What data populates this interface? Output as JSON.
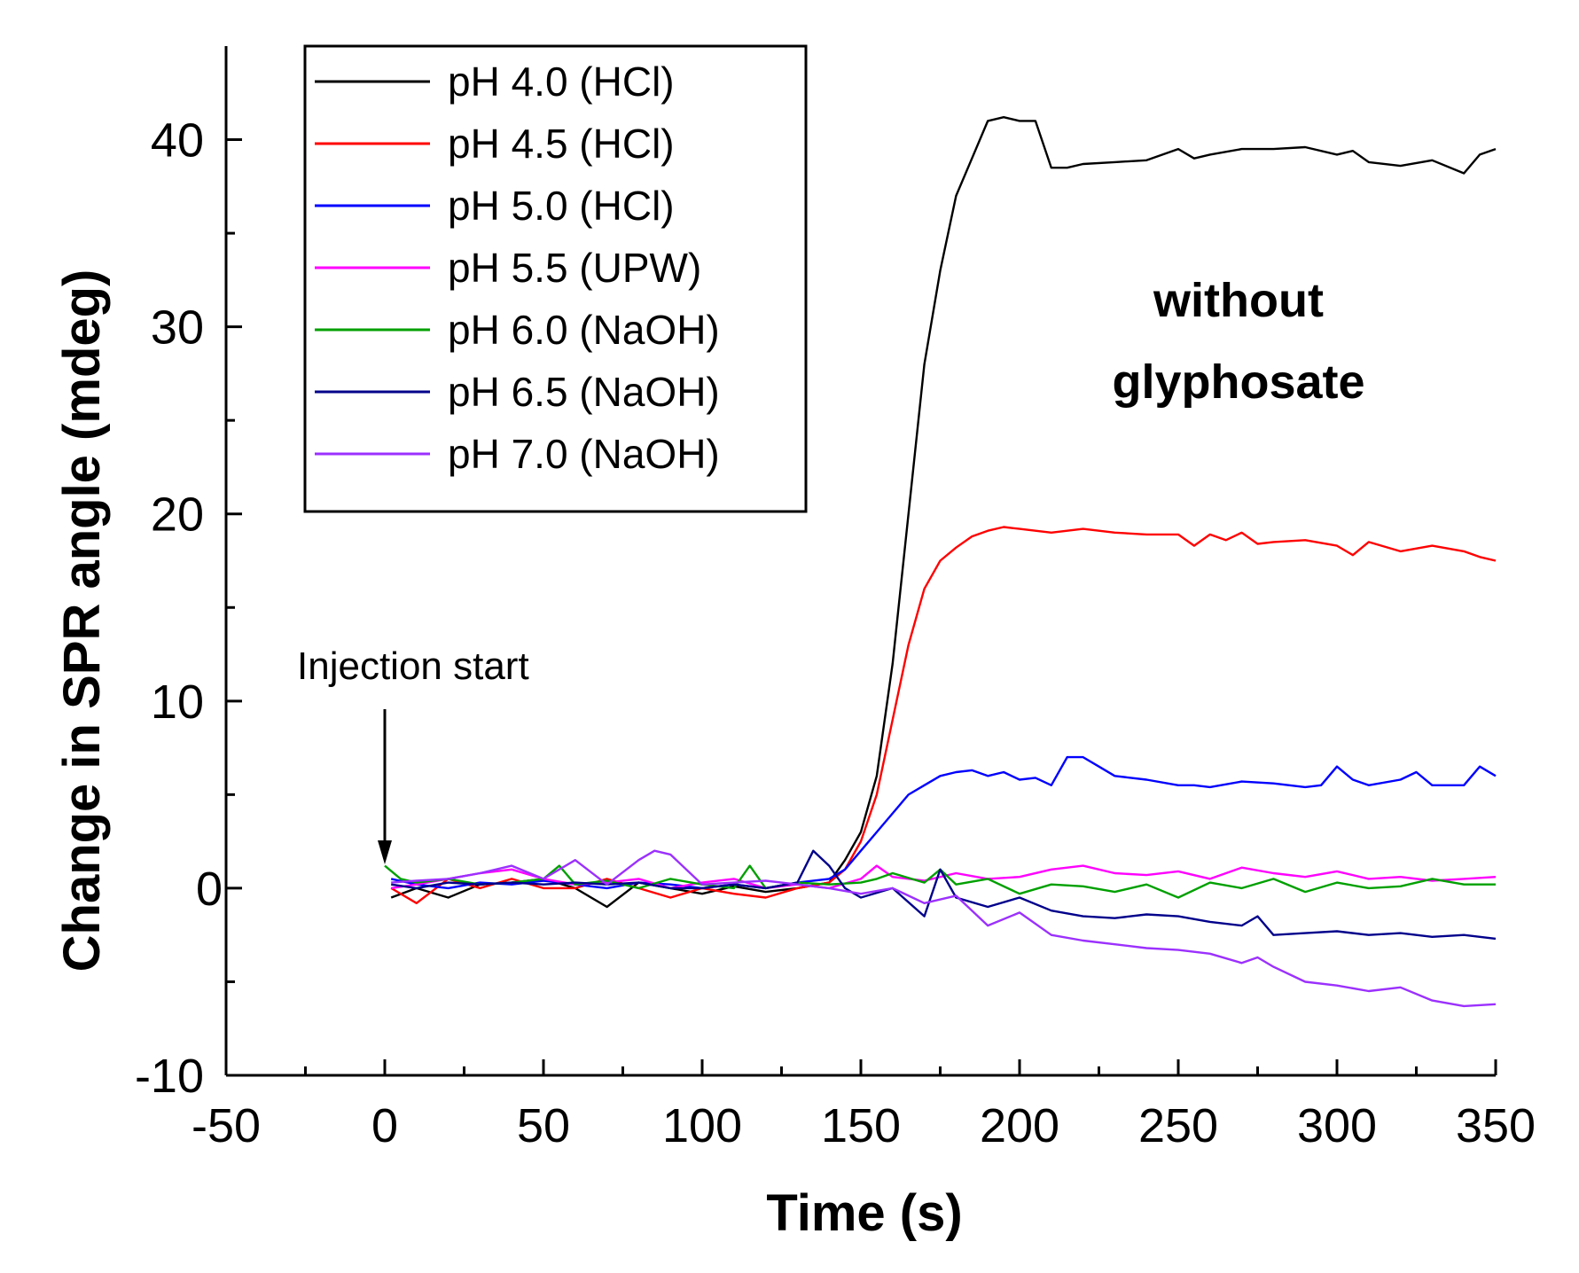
{
  "chart_data": {
    "type": "line",
    "title": "",
    "xlabel": "Time (s)",
    "ylabel": "Change in SPR angle (mdeg)",
    "xlim": [
      -50,
      350
    ],
    "ylim": [
      -10,
      45
    ],
    "xticks": [
      -50,
      0,
      50,
      100,
      150,
      200,
      250,
      300,
      350
    ],
    "yticks": [
      -10,
      0,
      10,
      20,
      30,
      40
    ],
    "yticks_labeled": [
      -10,
      10,
      20,
      30,
      40
    ],
    "y_zero_label": "0",
    "grid": false,
    "legend_position": "top-left",
    "annotations": {
      "injection": {
        "text": "Injection start",
        "x": 0
      },
      "condition_line1": "without",
      "condition_line2": "glyphosate"
    },
    "series": [
      {
        "name": "pH 4.0 (HCl)",
        "color": "#000000",
        "x": [
          2,
          10,
          20,
          30,
          40,
          50,
          60,
          70,
          80,
          90,
          100,
          110,
          120,
          130,
          140,
          145,
          150,
          155,
          160,
          165,
          170,
          175,
          180,
          185,
          190,
          195,
          200,
          205,
          210,
          215,
          220,
          230,
          240,
          250,
          255,
          260,
          270,
          280,
          290,
          300,
          305,
          310,
          320,
          330,
          340,
          345,
          350
        ],
        "y": [
          -0.5,
          0,
          -0.5,
          0.2,
          0.3,
          0.5,
          0,
          -1,
          0.3,
          0,
          -0.3,
          0.1,
          -0.2,
          0,
          0.3,
          1.5,
          3,
          6,
          12,
          20,
          28,
          33,
          37,
          39,
          41,
          41.2,
          41,
          41,
          38.5,
          38.5,
          38.7,
          38.8,
          38.9,
          39.5,
          39,
          39.2,
          39.5,
          39.5,
          39.6,
          39.2,
          39.4,
          38.8,
          38.6,
          38.9,
          38.2,
          39.2,
          39.5
        ]
      },
      {
        "name": "pH 4.5 (HCl)",
        "color": "#ff0000",
        "x": [
          2,
          10,
          20,
          30,
          40,
          50,
          60,
          70,
          80,
          90,
          100,
          110,
          120,
          130,
          140,
          145,
          150,
          155,
          160,
          165,
          170,
          175,
          180,
          185,
          190,
          195,
          200,
          210,
          220,
          230,
          240,
          250,
          255,
          260,
          265,
          270,
          275,
          280,
          290,
          300,
          305,
          310,
          320,
          330,
          340,
          345,
          350
        ],
        "y": [
          0,
          -0.8,
          0.5,
          0,
          0.5,
          0,
          0,
          0.5,
          0,
          -0.5,
          0,
          -0.3,
          -0.5,
          0,
          0.3,
          1,
          2.5,
          5,
          9,
          13,
          16,
          17.5,
          18.2,
          18.8,
          19.1,
          19.3,
          19.2,
          19.0,
          19.2,
          19.0,
          18.9,
          18.9,
          18.3,
          18.9,
          18.6,
          19.0,
          18.4,
          18.5,
          18.6,
          18.3,
          17.8,
          18.5,
          18.0,
          18.3,
          18.0,
          17.7,
          17.5
        ]
      },
      {
        "name": "pH 5.0 (HCl)",
        "color": "#0000ff",
        "x": [
          2,
          10,
          20,
          30,
          40,
          50,
          60,
          70,
          80,
          90,
          100,
          110,
          120,
          130,
          140,
          145,
          150,
          155,
          160,
          165,
          170,
          175,
          180,
          185,
          190,
          195,
          200,
          205,
          210,
          215,
          220,
          225,
          230,
          240,
          250,
          255,
          260,
          270,
          280,
          290,
          295,
          300,
          305,
          310,
          320,
          325,
          330,
          340,
          345,
          350
        ],
        "y": [
          0.5,
          0.2,
          0,
          0.3,
          0.2,
          0.4,
          0.2,
          0,
          0.3,
          0.2,
          0,
          0.2,
          0,
          0.3,
          0.5,
          1,
          2,
          3,
          4,
          5,
          5.5,
          6,
          6.2,
          6.3,
          6.0,
          6.2,
          5.8,
          5.9,
          5.5,
          7.0,
          7.0,
          6.5,
          6.0,
          5.8,
          5.5,
          5.5,
          5.4,
          5.7,
          5.6,
          5.4,
          5.5,
          6.5,
          5.8,
          5.5,
          5.8,
          6.2,
          5.5,
          5.5,
          6.5,
          6.0
        ]
      },
      {
        "name": "pH 5.5 (UPW)",
        "color": "#ff00ff",
        "x": [
          2,
          10,
          20,
          30,
          40,
          50,
          60,
          70,
          80,
          90,
          100,
          110,
          120,
          130,
          140,
          150,
          155,
          160,
          170,
          180,
          190,
          200,
          210,
          220,
          230,
          240,
          250,
          260,
          270,
          280,
          290,
          300,
          310,
          320,
          330,
          340,
          350
        ],
        "y": [
          0,
          0.2,
          0.5,
          0.8,
          1.0,
          0.5,
          0.2,
          0.3,
          0.5,
          0,
          0.3,
          0.5,
          0,
          0.2,
          0,
          0.5,
          1.2,
          0.6,
          0.4,
          0.8,
          0.5,
          0.6,
          1.0,
          1.2,
          0.8,
          0.7,
          0.9,
          0.5,
          1.1,
          0.8,
          0.6,
          0.9,
          0.5,
          0.6,
          0.4,
          0.5,
          0.6
        ]
      },
      {
        "name": "pH 6.0 (NaOH)",
        "color": "#00a000",
        "x": [
          0,
          5,
          10,
          20,
          30,
          40,
          50,
          55,
          60,
          70,
          80,
          90,
          100,
          110,
          115,
          120,
          130,
          140,
          150,
          155,
          160,
          170,
          175,
          180,
          190,
          200,
          210,
          220,
          230,
          240,
          250,
          260,
          270,
          280,
          290,
          300,
          310,
          320,
          330,
          340,
          350
        ],
        "y": [
          1.2,
          0.5,
          0.3,
          0.5,
          0.2,
          0.3,
          0.5,
          1.2,
          0.2,
          0.4,
          0,
          0.5,
          0.2,
          0,
          1.2,
          0,
          0.3,
          0.2,
          0.3,
          0.5,
          0.8,
          0.3,
          1.0,
          0.2,
          0.5,
          -0.3,
          0.2,
          0.1,
          -0.2,
          0.2,
          -0.5,
          0.3,
          0,
          0.5,
          -0.2,
          0.3,
          0,
          0.1,
          0.5,
          0.2,
          0.2
        ]
      },
      {
        "name": "pH 6.5 (NaOH)",
        "color": "#00008b",
        "x": [
          2,
          10,
          20,
          30,
          40,
          50,
          60,
          70,
          80,
          90,
          100,
          110,
          120,
          130,
          135,
          140,
          145,
          150,
          160,
          170,
          175,
          180,
          190,
          200,
          210,
          220,
          230,
          240,
          250,
          260,
          270,
          275,
          280,
          290,
          300,
          310,
          320,
          330,
          340,
          350
        ],
        "y": [
          0.2,
          0,
          0.3,
          0.2,
          0.3,
          0.2,
          0.3,
          0.2,
          0.3,
          0,
          0,
          0.2,
          0,
          0.3,
          2,
          1.2,
          0,
          -0.5,
          0,
          -1.5,
          1.0,
          -0.5,
          -1.0,
          -0.5,
          -1.2,
          -1.5,
          -1.6,
          -1.4,
          -1.5,
          -1.8,
          -2.0,
          -1.5,
          -2.5,
          -2.4,
          -2.3,
          -2.5,
          -2.4,
          -2.6,
          -2.5,
          -2.7
        ]
      },
      {
        "name": "pH 7.0 (NaOH)",
        "color": "#9b30ff",
        "x": [
          2,
          10,
          20,
          30,
          40,
          50,
          60,
          70,
          80,
          85,
          90,
          100,
          110,
          120,
          130,
          140,
          150,
          160,
          170,
          180,
          190,
          200,
          210,
          220,
          230,
          240,
          250,
          260,
          270,
          275,
          280,
          290,
          300,
          310,
          320,
          330,
          340,
          350
        ],
        "y": [
          0.3,
          0.4,
          0.5,
          0.8,
          1.2,
          0.5,
          1.5,
          0.2,
          1.5,
          2.0,
          1.8,
          0.2,
          0.3,
          0.4,
          0.2,
          0,
          -0.3,
          0,
          -0.8,
          -0.4,
          -2.0,
          -1.3,
          -2.5,
          -2.8,
          -3.0,
          -3.2,
          -3.3,
          -3.5,
          -4.0,
          -3.7,
          -4.2,
          -5.0,
          -5.2,
          -5.5,
          -5.3,
          -6.0,
          -6.3,
          -6.2
        ]
      }
    ]
  }
}
